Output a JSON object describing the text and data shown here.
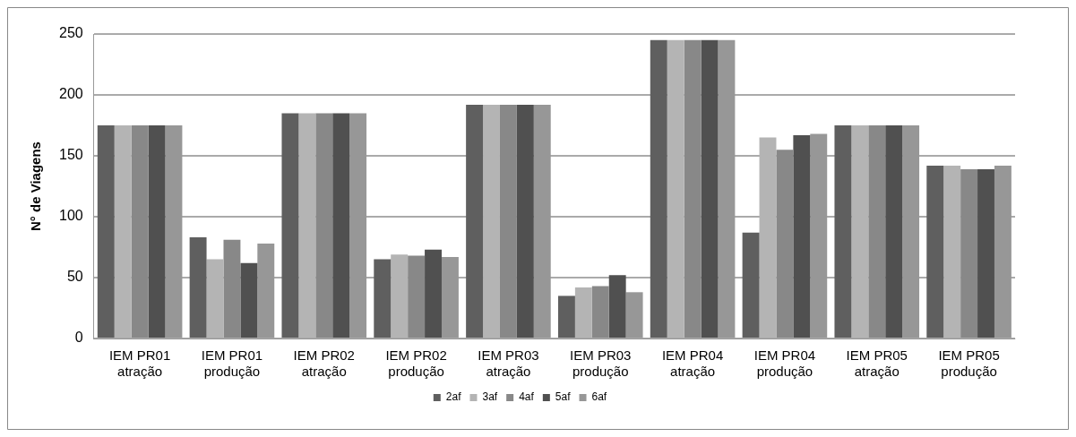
{
  "chart_data": {
    "type": "bar",
    "ylabel": "N° de Viagens",
    "categories": [
      "IEM PR01 atração",
      "IEM PR01 produção",
      "IEM PR02 atração",
      "IEM PR02 produção",
      "IEM PR03 atração",
      "IEM PR03 produção",
      "IEM PR04 atração",
      "IEM PR04 produção",
      "IEM PR05 atração",
      "IEM PR05 produção"
    ],
    "series": [
      {
        "name": "2af",
        "color": "#5f5f5f",
        "values": [
          175,
          83,
          185,
          65,
          192,
          35,
          245,
          87,
          175,
          142
        ]
      },
      {
        "name": "3af",
        "color": "#b4b4b4",
        "values": [
          175,
          65,
          185,
          69,
          192,
          42,
          245,
          165,
          175,
          142
        ]
      },
      {
        "name": "4af",
        "color": "#888888",
        "values": [
          175,
          81,
          185,
          68,
          192,
          43,
          245,
          155,
          175,
          139
        ]
      },
      {
        "name": "5af",
        "color": "#505050",
        "values": [
          175,
          62,
          185,
          73,
          192,
          52,
          245,
          167,
          175,
          139
        ]
      },
      {
        "name": "6af",
        "color": "#979797",
        "values": [
          175,
          78,
          185,
          67,
          192,
          38,
          245,
          168,
          175,
          142
        ]
      }
    ],
    "ylim": [
      0,
      250
    ],
    "yticks": [
      0,
      50,
      100,
      150,
      200,
      250
    ],
    "grid": "y",
    "legend": "bottom"
  }
}
